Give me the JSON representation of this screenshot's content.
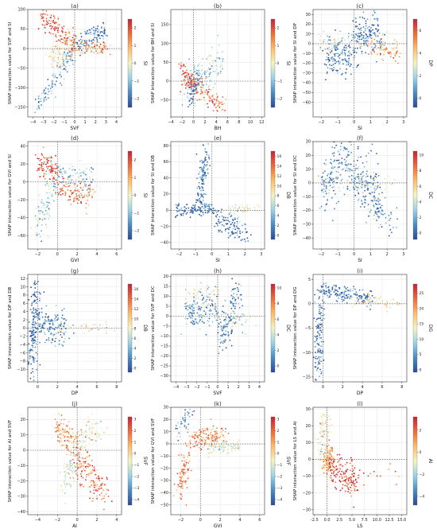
{
  "figure": {
    "colormap": [
      "#2c4a9a",
      "#4a8cc4",
      "#9cd2e6",
      "#f4f4c2",
      "#fdbc6a",
      "#f06a3a",
      "#c8213a"
    ]
  },
  "chart_data": [
    {
      "type": "scatter",
      "panel": "(a)",
      "xlabel": "SVF",
      "ylabel": "SHAP interaction value for SVF and SI",
      "colorbar_label": "SI",
      "xlim": [
        -4.5,
        4.5
      ],
      "ylim": [
        -175,
        100
      ],
      "xticks": [
        -4,
        -3,
        -2,
        -1,
        0,
        1,
        2,
        3,
        4
      ],
      "yticks": [
        -150,
        -100,
        -50,
        0,
        50,
        100
      ],
      "clim": [
        -2.5,
        2.5
      ],
      "cticks": [
        -2,
        -1,
        0,
        1,
        2
      ],
      "clusters": [
        {
          "x": [
            -3.2,
            0
          ],
          "y": [
            85,
            5
          ],
          "spread": 14,
          "c": 2.0,
          "n": 130
        },
        {
          "x": [
            0.2,
            3.0
          ],
          "y": [
            5,
            45
          ],
          "spread": 12,
          "c": -1.8,
          "n": 110
        },
        {
          "x": [
            -3.6,
            -0.2
          ],
          "y": [
            -150,
            -10
          ],
          "spread": 14,
          "c": -1.4,
          "n": 120
        },
        {
          "x": [
            -2.4,
            0
          ],
          "y": [
            -30,
            10
          ],
          "spread": 20,
          "c": 0.3,
          "n": 110
        },
        {
          "x": [
            0.3,
            3.2
          ],
          "y": [
            0,
            5
          ],
          "spread": 9,
          "c": 1.2,
          "n": 80
        }
      ]
    },
    {
      "type": "scatter",
      "panel": "(b)",
      "xlabel": "BH",
      "ylabel": "SHAP interaction value for BH and SI",
      "colorbar_label": "SI",
      "xlim": [
        -4,
        12.5
      ],
      "ylim": [
        -95,
        190
      ],
      "xticks": [
        -4,
        -2,
        0,
        2,
        4,
        6,
        8,
        10,
        12
      ],
      "yticks": [
        -50,
        0,
        50,
        100,
        150
      ],
      "clim": [
        -2.5,
        2.5
      ],
      "cticks": [
        -2,
        -1,
        0,
        1,
        2
      ],
      "clusters": [
        {
          "x": [
            -2,
            0
          ],
          "y": [
            25,
            -10
          ],
          "spread": 14,
          "c": 2.0,
          "n": 80
        },
        {
          "x": [
            0,
            5
          ],
          "y": [
            0,
            -70
          ],
          "spread": 14,
          "c": 1.6,
          "n": 110
        },
        {
          "x": [
            -1.5,
            5
          ],
          "y": [
            -5,
            55
          ],
          "spread": 24,
          "c": -0.8,
          "n": 130
        },
        {
          "x": [
            -0.6,
            0.6
          ],
          "y": [
            -60,
            20
          ],
          "spread": 12,
          "c": -1.8,
          "n": 60
        }
      ]
    },
    {
      "type": "scatter",
      "panel": "(c)",
      "xlabel": "SI",
      "ylabel": "SHAP interaction value for SI and DP",
      "colorbar_label": "DP",
      "xlim": [
        -2.5,
        3.2
      ],
      "ylim": [
        -75,
        35
      ],
      "xticks": [
        -2,
        -1,
        0,
        1,
        2,
        3
      ],
      "yticks": [
        -60,
        -50,
        -40,
        -30,
        -20,
        -10,
        0,
        10,
        20,
        30
      ],
      "clim": [
        -0.8,
        7
      ],
      "cticks": [
        0,
        2,
        4,
        6
      ],
      "clusters": [
        {
          "x": [
            -1.8,
            0
          ],
          "y": [
            -10,
            -15
          ],
          "spread": 10,
          "c": 0.2,
          "n": 150
        },
        {
          "x": [
            0,
            1.5
          ],
          "y": [
            5,
            10
          ],
          "spread": 10,
          "c": 0.1,
          "n": 160
        },
        {
          "x": [
            -2.2,
            2.5
          ],
          "y": [
            0,
            0
          ],
          "spread": 5,
          "c": 3.0,
          "n": 110
        },
        {
          "x": [
            1.0,
            2.8
          ],
          "y": [
            -5,
            -10
          ],
          "spread": 5,
          "c": 5.0,
          "n": 50
        }
      ]
    },
    {
      "type": "scatter",
      "panel": "(d)",
      "xlabel": "GVI",
      "ylabel": "SHAP interaction value for GVI and SI",
      "colorbar_label": "SI",
      "xlim": [
        -3,
        6.5
      ],
      "ylim": [
        -75,
        45
      ],
      "xticks": [
        -2,
        0,
        2,
        4,
        6
      ],
      "yticks": [
        -60,
        -40,
        -20,
        0,
        20,
        40
      ],
      "clim": [
        -2.5,
        2.5
      ],
      "cticks": [
        -2,
        -1,
        0,
        1,
        2
      ],
      "clusters": [
        {
          "x": [
            -2.2,
            0
          ],
          "y": [
            -50,
            5
          ],
          "spread": 14,
          "c": -0.7,
          "n": 120
        },
        {
          "x": [
            -2.0,
            0
          ],
          "y": [
            22,
            10
          ],
          "spread": 8,
          "c": 2.0,
          "n": 90
        },
        {
          "x": [
            0,
            3.5
          ],
          "y": [
            -5,
            -15
          ],
          "spread": 8,
          "c": 1.6,
          "n": 110
        },
        {
          "x": [
            0,
            3.5
          ],
          "y": [
            8,
            2
          ],
          "spread": 7,
          "c": -1.0,
          "n": 100
        }
      ]
    },
    {
      "type": "scatter",
      "panel": "(e)",
      "xlabel": "SI",
      "ylabel": "SHAP interaction value for SI and DB",
      "colorbar_label": "DB",
      "xlim": [
        -2.5,
        3.2
      ],
      "ylim": [
        -48,
        85
      ],
      "xticks": [
        -2,
        -1,
        0,
        1,
        2,
        3
      ],
      "yticks": [
        -40,
        -20,
        0,
        20,
        40,
        60,
        80
      ],
      "clim": [
        -0.8,
        17
      ],
      "cticks": [
        0,
        2,
        4,
        6,
        8,
        10,
        12,
        14,
        16
      ],
      "clusters": [
        {
          "x": [
            -0.8,
            -0.4
          ],
          "y": [
            0,
            75
          ],
          "spread": 8,
          "c": 1.5,
          "n": 130
        },
        {
          "x": [
            -2.2,
            0.3
          ],
          "y": [
            0,
            0
          ],
          "spread": 4,
          "c": 1.0,
          "n": 120
        },
        {
          "x": [
            0.3,
            2.2
          ],
          "y": [
            -10,
            -30
          ],
          "spread": 8,
          "c": 1.0,
          "n": 110
        },
        {
          "x": [
            1.0,
            2.8
          ],
          "y": [
            0,
            3
          ],
          "spread": 3,
          "c": 8.0,
          "n": 40
        }
      ]
    },
    {
      "type": "scatter",
      "panel": "(f)",
      "xlabel": "SI",
      "ylabel": "SHAP interaction value for SI and DC",
      "colorbar_label": "DC",
      "xlim": [
        -2.5,
        3.2
      ],
      "ylim": [
        -48,
        30
      ],
      "xticks": [
        -2,
        -1,
        0,
        1,
        2,
        3
      ],
      "yticks": [
        -40,
        -30,
        -20,
        -10,
        0,
        10,
        20,
        30
      ],
      "clim": [
        -0.8,
        10.5
      ],
      "cticks": [
        0,
        2,
        4,
        6,
        8,
        10
      ],
      "clusters": [
        {
          "x": [
            -2.0,
            -0.4
          ],
          "y": [
            -5,
            20
          ],
          "spread": 10,
          "c": 1.2,
          "n": 150
        },
        {
          "x": [
            -0.4,
            1.5
          ],
          "y": [
            10,
            -5
          ],
          "spread": 10,
          "c": 1.0,
          "n": 150
        },
        {
          "x": [
            0.5,
            2.5
          ],
          "y": [
            -10,
            -30
          ],
          "spread": 8,
          "c": 1.0,
          "n": 80
        },
        {
          "x": [
            -2.0,
            2.5
          ],
          "y": [
            0,
            0
          ],
          "spread": 4,
          "c": 5.0,
          "n": 60
        }
      ]
    },
    {
      "type": "scatter",
      "panel": "(g)",
      "xlabel": "DP",
      "ylabel": "SHAP interaction value for DP and DB",
      "colorbar_label": "DB",
      "xlim": [
        -1,
        8.5
      ],
      "ylim": [
        -13,
        13
      ],
      "xticks": [
        0,
        2,
        4,
        6,
        8
      ],
      "yticks": [
        -10,
        -8,
        -6,
        -4,
        -2,
        0,
        2,
        4,
        6,
        8,
        10,
        12
      ],
      "clim": [
        -0.8,
        17
      ],
      "cticks": [
        0,
        2,
        4,
        6,
        8,
        10,
        12,
        14,
        16
      ],
      "clusters": [
        {
          "x": [
            -0.6,
            -0.2
          ],
          "y": [
            -9,
            10
          ],
          "spread": 2.2,
          "c": 1.0,
          "n": 160
        },
        {
          "x": [
            0,
            3.0
          ],
          "y": [
            1,
            0
          ],
          "spread": 2.2,
          "c": 2.0,
          "n": 150
        },
        {
          "x": [
            2.0,
            7.5
          ],
          "y": [
            0,
            0
          ],
          "spread": 0.8,
          "c": 8.0,
          "n": 40
        }
      ]
    },
    {
      "type": "scatter",
      "panel": "(h)",
      "xlabel": "SVF",
      "ylabel": "SHAP interaction value for SVF and DC",
      "colorbar_label": "DC",
      "xlim": [
        -4.5,
        4.5
      ],
      "ylim": [
        -33,
        21
      ],
      "xticks": [
        -4,
        -3,
        -2,
        -1,
        0,
        1,
        2,
        3,
        4
      ],
      "yticks": [
        -30,
        -25,
        -20,
        -15,
        -10,
        -5,
        0,
        5,
        10,
        15,
        20
      ],
      "clim": [
        -0.8,
        10.5
      ],
      "cticks": [
        0,
        2,
        4,
        6,
        8,
        10
      ],
      "clusters": [
        {
          "x": [
            -3.0,
            0
          ],
          "y": [
            2,
            4
          ],
          "spread": 4,
          "c": 1.5,
          "n": 150
        },
        {
          "x": [
            0.2,
            2.0
          ],
          "y": [
            -12,
            10
          ],
          "spread": 5,
          "c": 0.8,
          "n": 140
        },
        {
          "x": [
            -3.0,
            0
          ],
          "y": [
            8,
            10
          ],
          "spread": 3,
          "c": 5.0,
          "n": 50
        },
        {
          "x": [
            0.2,
            3.0
          ],
          "y": [
            0,
            -2
          ],
          "spread": 3,
          "c": 4.0,
          "n": 50
        }
      ]
    },
    {
      "type": "scatter",
      "panel": "(i)",
      "xlabel": "DP",
      "ylabel": "SHAP interaction value for DP and DG",
      "colorbar_label": "DG",
      "xlim": [
        -1,
        8.5
      ],
      "ylim": [
        -16,
        6
      ],
      "xticks": [
        0,
        2,
        4,
        6,
        8
      ],
      "yticks": [
        -15,
        -10,
        -5,
        0,
        5
      ],
      "clim": [
        -0.8,
        28
      ],
      "cticks": [
        0,
        5,
        10,
        15,
        20,
        25
      ],
      "clusters": [
        {
          "x": [
            -0.5,
            -0.3
          ],
          "y": [
            -14,
            0
          ],
          "spread": 1.5,
          "c": 2.0,
          "n": 120
        },
        {
          "x": [
            -0.3,
            5.0
          ],
          "y": [
            3,
            1
          ],
          "spread": 0.8,
          "c": 3.0,
          "n": 180
        },
        {
          "x": [
            3.0,
            7.8
          ],
          "y": [
            0.5,
            0
          ],
          "spread": 0.6,
          "c": 16.0,
          "n": 50
        }
      ]
    },
    {
      "type": "scatter",
      "panel": "(j)",
      "xlabel": "AI",
      "ylabel": "SHAP interaction value for AI and SVF",
      "colorbar_label": "SVF",
      "xlim": [
        -5,
        4.5
      ],
      "ylim": [
        -42,
        28
      ],
      "xticks": [
        -4,
        -2,
        0,
        2,
        4
      ],
      "yticks": [
        -40,
        -30,
        -20,
        -10,
        0,
        10,
        20
      ],
      "clim": [
        -4.5,
        3.2
      ],
      "cticks": [
        -4,
        -3,
        -2,
        -1,
        0,
        1,
        2,
        3
      ],
      "clusters": [
        {
          "x": [
            -2.0,
            0
          ],
          "y": [
            15,
            2
          ],
          "spread": 5,
          "c": 1.0,
          "n": 120
        },
        {
          "x": [
            0,
            3.0
          ],
          "y": [
            -5,
            -30
          ],
          "spread": 6,
          "c": 1.8,
          "n": 160
        },
        {
          "x": [
            -1.5,
            0
          ],
          "y": [
            -25,
            -5
          ],
          "spread": 6,
          "c": -1.2,
          "n": 80
        },
        {
          "x": [
            0,
            2.5
          ],
          "y": [
            5,
            15
          ],
          "spread": 5,
          "c": -0.8,
          "n": 80
        }
      ]
    },
    {
      "type": "scatter",
      "panel": "(k)",
      "xlabel": "GVI",
      "ylabel": "SHAP interaction value for GVI and SVF",
      "colorbar_label": "SVF",
      "xlim": [
        -3,
        6.5
      ],
      "ylim": [
        -58,
        30
      ],
      "xticks": [
        -2,
        0,
        2,
        4,
        6
      ],
      "yticks": [
        -50,
        -40,
        -30,
        -20,
        -10,
        0,
        10,
        20,
        30
      ],
      "clim": [
        -4.5,
        3.2
      ],
      "cticks": [
        -4,
        -3,
        -2,
        -1,
        0,
        1,
        2,
        3
      ],
      "clusters": [
        {
          "x": [
            -2.2,
            -1.2
          ],
          "y": [
            -40,
            -5
          ],
          "spread": 7,
          "c": 1.5,
          "n": 90
        },
        {
          "x": [
            -1.0,
            2.5
          ],
          "y": [
            3,
            8
          ],
          "spread": 4,
          "c": 1.2,
          "n": 150
        },
        {
          "x": [
            0.5,
            4.0
          ],
          "y": [
            -2,
            -2
          ],
          "spread": 3,
          "c": -1.0,
          "n": 100
        },
        {
          "x": [
            -2.5,
            -1.0
          ],
          "y": [
            10,
            25
          ],
          "spread": 5,
          "c": -3.0,
          "n": 40
        }
      ]
    },
    {
      "type": "scatter",
      "panel": "(l)",
      "xlabel": "LS",
      "ylabel": "SHAP interaction value for LS and AI",
      "colorbar_label": "AI",
      "xlim": [
        -2.8,
        16
      ],
      "ylim": [
        -33,
        31
      ],
      "xticks": [
        -2.5,
        0,
        2.5,
        5,
        7.5,
        10,
        12.5,
        15
      ],
      "xticklabels": [
        "-2.5",
        "0.0",
        "2.5",
        "5.0",
        "7.5",
        "10.0",
        "12.5",
        "15.0"
      ],
      "yticks": [
        -30,
        -20,
        -10,
        0,
        10,
        20,
        30
      ],
      "clim": [
        -4.8,
        3.2
      ],
      "cticks": [
        -4,
        -2,
        0,
        2
      ],
      "clusters": [
        {
          "x": [
            -0.3,
            0.5
          ],
          "y": [
            -5,
            5
          ],
          "spread": 5,
          "c": 0.5,
          "n": 140
        },
        {
          "x": [
            0.5,
            6.0
          ],
          "y": [
            -5,
            -15
          ],
          "spread": 5,
          "c": 2.5,
          "n": 160
        },
        {
          "x": [
            -1.5,
            0
          ],
          "y": [
            5,
            25
          ],
          "spread": 6,
          "c": -1.0,
          "n": 70
        },
        {
          "x": [
            5.0,
            14.0
          ],
          "y": [
            -10,
            -12
          ],
          "spread": 4,
          "c": 2.0,
          "n": 20
        }
      ]
    }
  ]
}
